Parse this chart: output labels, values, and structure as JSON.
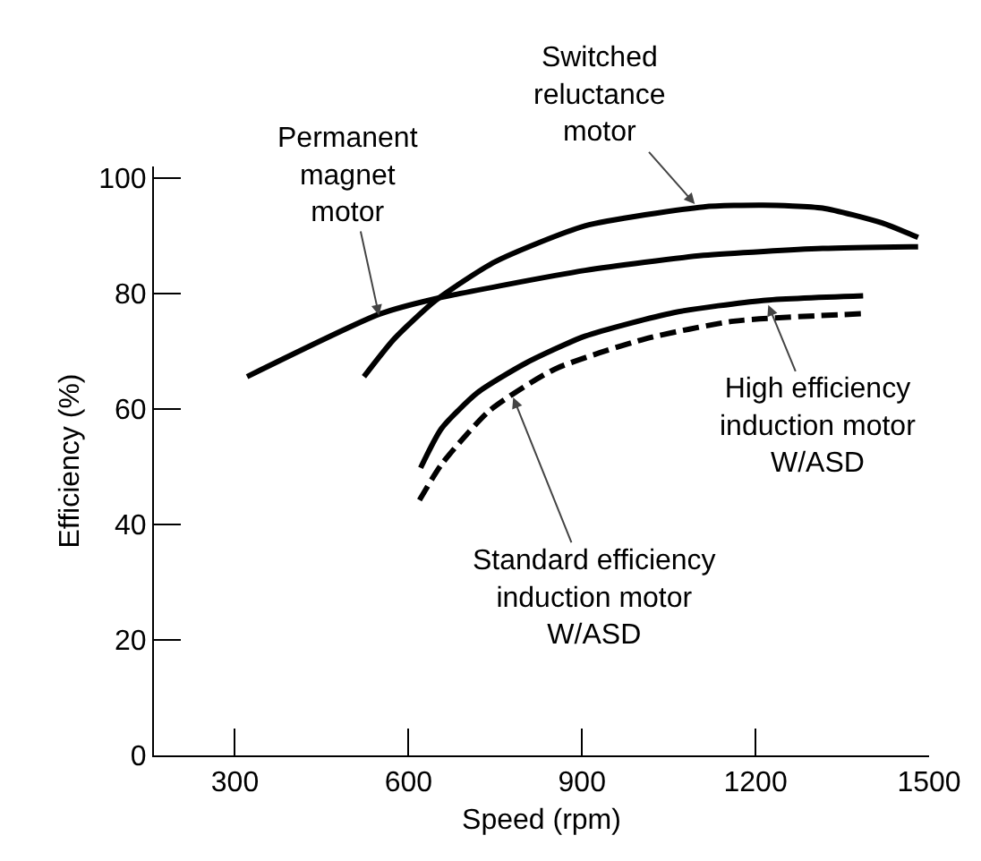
{
  "chart_data": {
    "type": "line",
    "xlabel": "Speed (rpm)",
    "ylabel": "Efficiency (%)",
    "xlim": [
      160,
      1500
    ],
    "xticks": [
      300,
      600,
      900,
      1200,
      1500
    ],
    "ylim": [
      0,
      102
    ],
    "yticks": [
      0,
      20,
      40,
      60,
      80,
      100
    ],
    "grid": false,
    "marker": "none",
    "series": [
      {
        "color": "#000000",
        "line_style": "solid",
        "x": [
          321,
          549,
          647,
          905,
          1110,
          1316,
          1481
        ],
        "values": [
          65.6,
          76.4,
          79.1,
          84,
          86.6,
          87.8,
          88.1
        ]
      },
      {
        "color": "#000000",
        "line_style": "solid",
        "x": [
          523,
          575,
          647,
          750,
          905,
          1110,
          1213,
          1316,
          1419,
          1481
        ],
        "values": [
          65.6,
          72.1,
          78.8,
          85.5,
          91.7,
          95,
          95.3,
          94.8,
          92.2,
          89.7
        ]
      },
      {
        "color": "#000000",
        "line_style": "solid",
        "x": [
          621,
          657,
          719,
          802,
          905,
          1059,
          1213,
          1386
        ],
        "values": [
          49.8,
          56.6,
          62.8,
          67.9,
          72.6,
          76.7,
          78.8,
          79.6
        ]
      },
      {
        "color": "#000000",
        "line_style": "dashed",
        "x": [
          619,
          657,
          740,
          853,
          1008,
          1162,
          1386
        ],
        "values": [
          44.2,
          50.4,
          59.7,
          66.9,
          72.1,
          75.2,
          76.5
        ]
      }
    ],
    "annotations": [
      {
        "text": "Switched\nreluctance\nmotor",
        "x": 1095,
        "y": 95.5
      },
      {
        "text": "Permanent\nmagnet\nmotor",
        "x": 549,
        "y": 76.2
      },
      {
        "text": "High efficiency\ninduction motor\nW/ASD",
        "x": 1222,
        "y": 78
      },
      {
        "text": "Standard efficiency\ninduction motor\nW/ASD",
        "x": 781,
        "y": 62
      }
    ]
  }
}
